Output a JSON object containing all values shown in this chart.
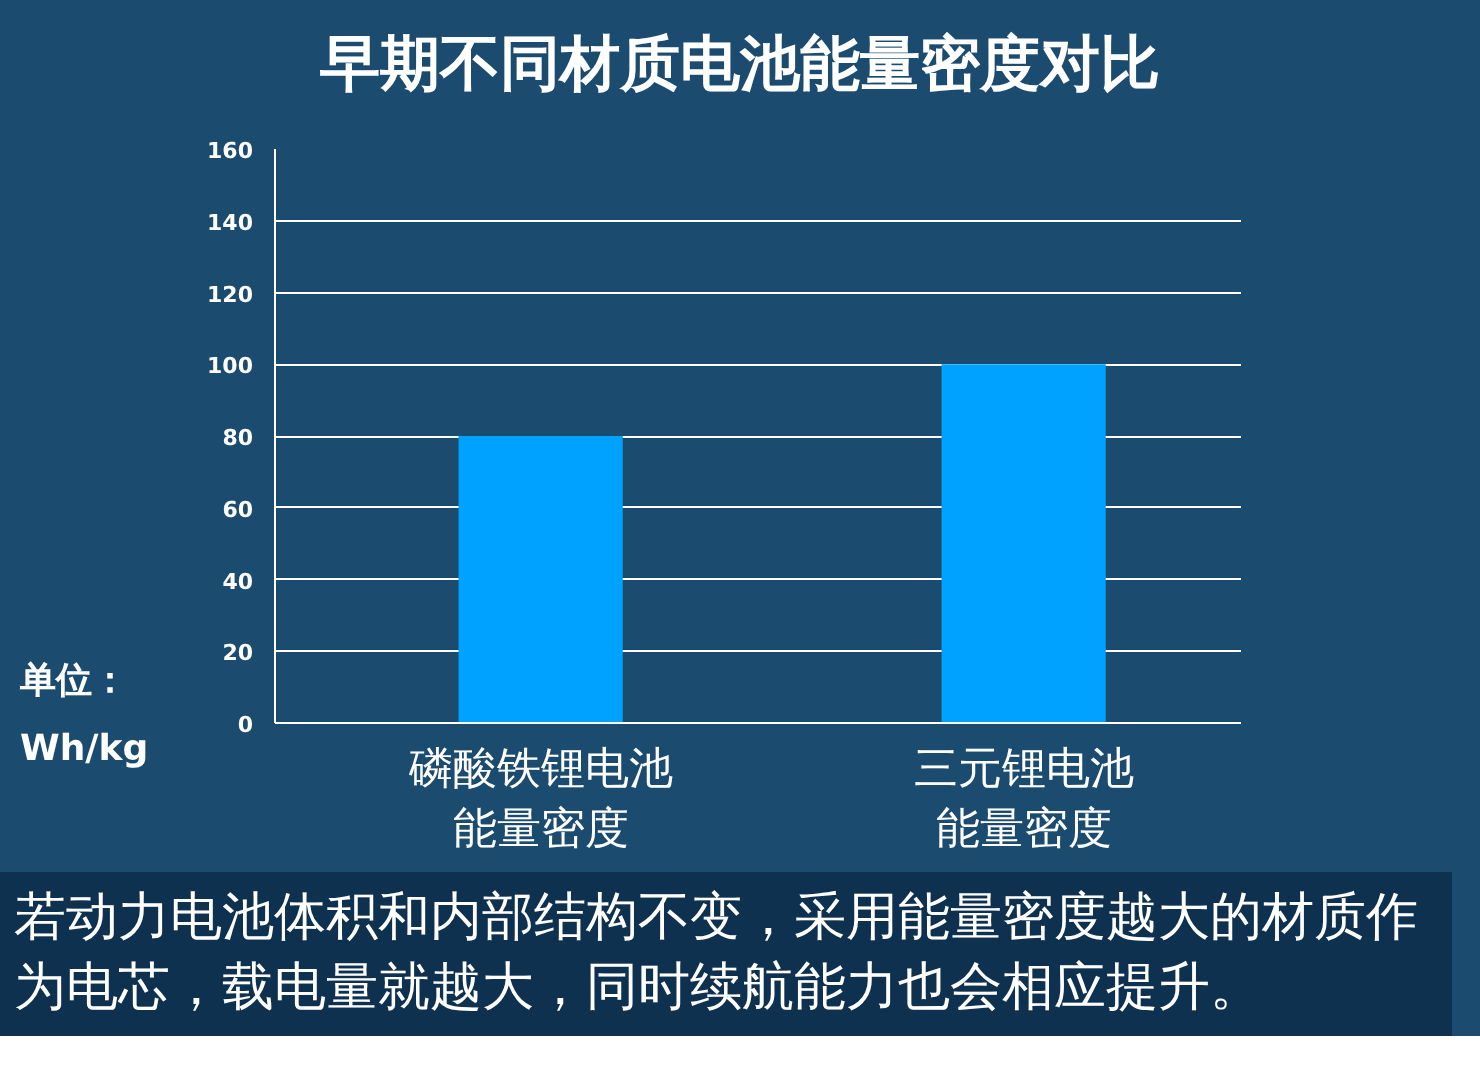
{
  "chart_data": {
    "type": "bar",
    "title": "早期不同材质电池能量密度对比",
    "ylabel": "单位：Wh/kg",
    "categories": [
      "磷酸铁锂电池能量密度",
      "三元锂电池能量密度"
    ],
    "values": [
      80,
      100
    ],
    "color": "#00a2ff",
    "ylim": [
      0,
      160
    ],
    "yticks": [
      0,
      20,
      40,
      60,
      80,
      100,
      120,
      140,
      160
    ],
    "grid": "y",
    "annotations": [
      "若动力电池体积和内部结构不变，采用能量密度越大的材质作为电芯，载电量就越大，同时续航能力也会相应提升。"
    ]
  }
}
